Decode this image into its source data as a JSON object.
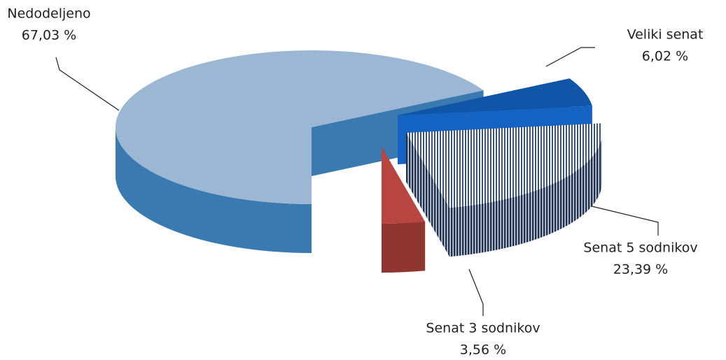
{
  "chart_data": {
    "type": "pie",
    "categories": [
      "Nedodeljeno",
      "Veliki senat",
      "Senat 5 sodnikov",
      "Senat 3 sodnikov"
    ],
    "values": [
      67.03,
      6.02,
      23.39,
      3.56
    ],
    "value_labels": [
      "67,03 %",
      "6,02 %",
      "23,39 %",
      "3,56 %"
    ],
    "colors": [
      "#9bb7d4",
      "#1155a8",
      "#2b3f5f",
      "#b8453f"
    ],
    "hatch": [
      false,
      false,
      true,
      false
    ]
  }
}
